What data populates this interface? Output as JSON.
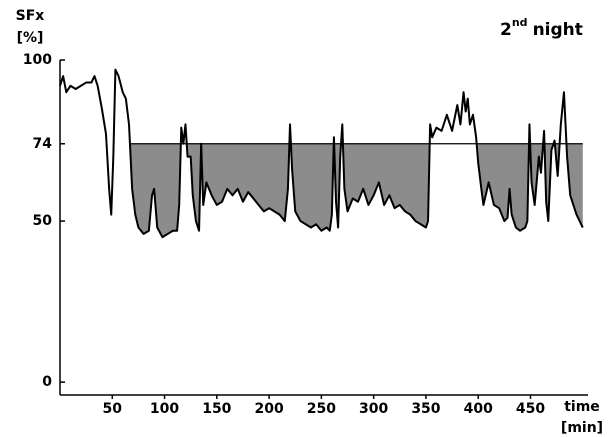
{
  "chart_data": {
    "type": "line",
    "title_number": "2",
    "title_suffix": "nd",
    "title_text": "night",
    "y_label": "SFx",
    "y_unit": "[%]",
    "x_label": "time",
    "x_unit": "[min]",
    "x": [
      0,
      3,
      6,
      10,
      15,
      20,
      25,
      30,
      33,
      36,
      40,
      44,
      47,
      49,
      51,
      53,
      56,
      60,
      63,
      66,
      69,
      72,
      75,
      80,
      85,
      88,
      90,
      93,
      98,
      103,
      108,
      112,
      114,
      116,
      118,
      120,
      122,
      125,
      127,
      130,
      133,
      135,
      137,
      140,
      145,
      150,
      155,
      160,
      165,
      170,
      175,
      180,
      185,
      190,
      195,
      200,
      205,
      210,
      215,
      218,
      220,
      222,
      225,
      230,
      235,
      240,
      245,
      250,
      255,
      258,
      260,
      262,
      264,
      266,
      268,
      270,
      272,
      275,
      280,
      285,
      290,
      295,
      300,
      305,
      310,
      315,
      320,
      325,
      330,
      335,
      340,
      345,
      350,
      352,
      354,
      356,
      360,
      365,
      370,
      375,
      380,
      383,
      386,
      388,
      390,
      392,
      395,
      398,
      400,
      403,
      405,
      410,
      415,
      420,
      425,
      428,
      430,
      432,
      436,
      440,
      445,
      447,
      449,
      451,
      454,
      458,
      460,
      463,
      465,
      467,
      470,
      473,
      476,
      479,
      482,
      485,
      488,
      491,
      494,
      497,
      500
    ],
    "values": [
      92,
      95,
      90,
      92,
      91,
      92,
      93,
      93,
      95,
      92,
      85,
      77,
      60,
      52,
      70,
      97,
      95,
      90,
      88,
      80,
      60,
      52,
      48,
      46,
      47,
      58,
      60,
      48,
      45,
      46,
      47,
      47,
      55,
      79,
      74,
      80,
      70,
      70,
      58,
      50,
      47,
      74,
      55,
      62,
      58,
      55,
      56,
      60,
      58,
      60,
      56,
      59,
      57,
      55,
      53,
      54,
      53,
      52,
      50,
      60,
      80,
      66,
      53,
      50,
      49,
      48,
      49,
      47,
      48,
      47,
      52,
      76,
      56,
      48,
      70,
      80,
      60,
      53,
      57,
      56,
      60,
      55,
      58,
      62,
      55,
      58,
      54,
      55,
      53,
      52,
      50,
      49,
      48,
      50,
      80,
      76,
      79,
      78,
      83,
      78,
      86,
      80,
      90,
      84,
      88,
      80,
      83,
      76,
      68,
      60,
      55,
      62,
      55,
      54,
      50,
      51,
      60,
      52,
      48,
      47,
      48,
      50,
      80,
      62,
      55,
      70,
      65,
      78,
      56,
      50,
      72,
      75,
      64,
      80,
      90,
      70,
      58,
      55,
      52,
      50,
      48
    ],
    "color": "#000000",
    "shade_color": "#8c8c8c",
    "threshold": 74,
    "threshold_start": 67,
    "xlim": [
      0,
      505
    ],
    "ylim": [
      -4,
      100
    ],
    "xticks": [
      50,
      100,
      150,
      200,
      250,
      300,
      350,
      400,
      450
    ],
    "yticks": [
      0,
      50,
      74,
      100
    ]
  }
}
